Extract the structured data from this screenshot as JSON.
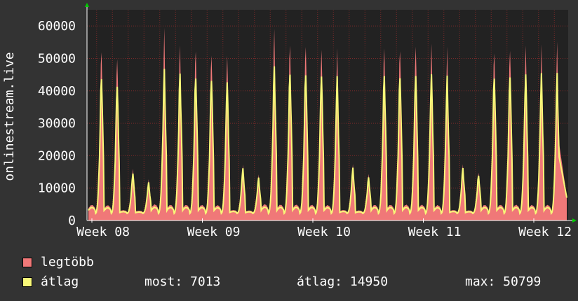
{
  "chart_data": {
    "type": "area",
    "ylabel": "onlinestream.live",
    "ylim": [
      0,
      65000
    ],
    "y_ticks": [
      0,
      10000,
      20000,
      30000,
      40000,
      50000,
      60000
    ],
    "x_ticks": [
      "Week 08",
      "Week 09",
      "Week 10",
      "Week 11",
      "Week 12"
    ],
    "x_range_weeks": [
      7.9,
      12.02
    ],
    "daily_peaks": [
      {
        "max": 57000,
        "avg": 48500
      },
      {
        "max": 54500,
        "avg": 45800
      },
      {
        "max": 16800,
        "avg": 15500
      },
      {
        "max": 13000,
        "avg": 12300
      },
      {
        "max": 61000,
        "avg": 49200
      },
      {
        "max": 57000,
        "avg": 48800
      },
      {
        "max": 57000,
        "avg": 48500
      },
      {
        "max": 56000,
        "avg": 48000
      },
      {
        "max": 54500,
        "avg": 46500
      },
      {
        "max": 17800,
        "avg": 17000
      },
      {
        "max": 14500,
        "avg": 13800
      },
      {
        "max": 61800,
        "avg": 50800
      },
      {
        "max": 58500,
        "avg": 49500
      },
      {
        "max": 59000,
        "avg": 50000
      },
      {
        "max": 57000,
        "avg": 48800
      },
      {
        "max": 55500,
        "avg": 47500
      },
      {
        "max": 17800,
        "avg": 17000
      },
      {
        "max": 14800,
        "avg": 14000
      },
      {
        "max": 57000,
        "avg": 48600
      },
      {
        "max": 57500,
        "avg": 48900
      },
      {
        "max": 58500,
        "avg": 49300
      },
      {
        "max": 57500,
        "avg": 48500
      },
      {
        "max": 55000,
        "avg": 47000
      },
      {
        "max": 17800,
        "avg": 17000
      },
      {
        "max": 15500,
        "avg": 14800
      },
      {
        "max": 56500,
        "avg": 48600
      },
      {
        "max": 57500,
        "avg": 49100
      },
      {
        "max": 57500,
        "avg": 48900
      },
      {
        "max": 56000,
        "avg": 48000
      },
      {
        "max": 56500,
        "avg": 47800
      }
    ],
    "series": [
      {
        "name": "legtöbb",
        "color": "#f07878"
      },
      {
        "name": "átlag",
        "color": "#f8f878"
      }
    ]
  },
  "legend": {
    "max_label": "legtöbb",
    "avg_label": "átlag",
    "max_color": "#f07878",
    "avg_color": "#f8f878"
  },
  "stats": {
    "current": "most: 7013",
    "average": "átlag: 14950",
    "maximum": "max: 50799"
  },
  "colors": {
    "background": "#333333",
    "plot_background": "#222222",
    "grid": "#7a2a2a",
    "axis": "#ffffff",
    "arrow": "#00cc00"
  }
}
